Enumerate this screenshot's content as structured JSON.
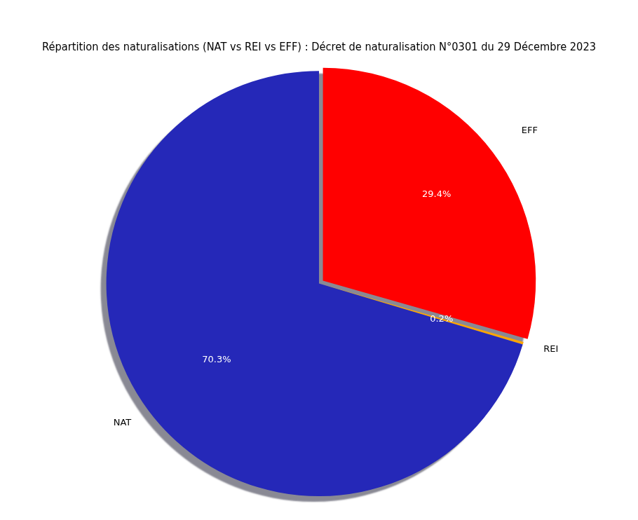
{
  "chart_data": {
    "type": "pie",
    "title": "Répartition des naturalisations (NAT vs REI vs EFF) : Décret de naturalisation N°0301 du 29 Décembre 2023",
    "categories": [
      "EFF",
      "REI",
      "NAT"
    ],
    "values": [
      29.4,
      0.2,
      70.3
    ],
    "value_labels": [
      "29.4%",
      "0.2%",
      "70.3%"
    ],
    "colors": [
      "#ff0000",
      "#ffa500",
      "#2528b8"
    ],
    "data_labels": true
  }
}
